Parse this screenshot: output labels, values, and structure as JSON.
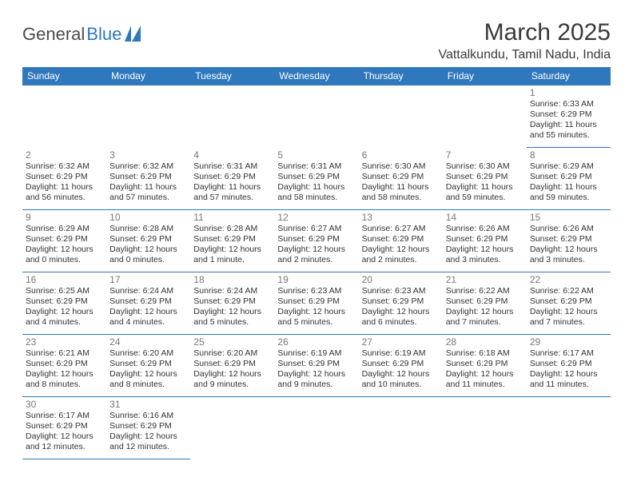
{
  "brand": {
    "part1": "General",
    "part2": "Blue"
  },
  "title": "March 2025",
  "location": "Vattalkundu, Tamil Nadu, India",
  "colors": {
    "header_bg": "#2f78bd",
    "header_fg": "#ffffff",
    "rule": "#2f78bd",
    "daynum": "#777777",
    "body_text": "#333333",
    "logo_dark": "#4a4a4a",
    "logo_blue": "#2f78bd"
  },
  "weekdays": [
    "Sunday",
    "Monday",
    "Tuesday",
    "Wednesday",
    "Thursday",
    "Friday",
    "Saturday"
  ],
  "first_weekday_index": 6,
  "days": [
    {
      "n": 1,
      "sunrise": "6:33 AM",
      "sunset": "6:29 PM",
      "daylight": "11 hours and 55 minutes."
    },
    {
      "n": 2,
      "sunrise": "6:32 AM",
      "sunset": "6:29 PM",
      "daylight": "11 hours and 56 minutes."
    },
    {
      "n": 3,
      "sunrise": "6:32 AM",
      "sunset": "6:29 PM",
      "daylight": "11 hours and 57 minutes."
    },
    {
      "n": 4,
      "sunrise": "6:31 AM",
      "sunset": "6:29 PM",
      "daylight": "11 hours and 57 minutes."
    },
    {
      "n": 5,
      "sunrise": "6:31 AM",
      "sunset": "6:29 PM",
      "daylight": "11 hours and 58 minutes."
    },
    {
      "n": 6,
      "sunrise": "6:30 AM",
      "sunset": "6:29 PM",
      "daylight": "11 hours and 58 minutes."
    },
    {
      "n": 7,
      "sunrise": "6:30 AM",
      "sunset": "6:29 PM",
      "daylight": "11 hours and 59 minutes."
    },
    {
      "n": 8,
      "sunrise": "6:29 AM",
      "sunset": "6:29 PM",
      "daylight": "11 hours and 59 minutes."
    },
    {
      "n": 9,
      "sunrise": "6:29 AM",
      "sunset": "6:29 PM",
      "daylight": "12 hours and 0 minutes."
    },
    {
      "n": 10,
      "sunrise": "6:28 AM",
      "sunset": "6:29 PM",
      "daylight": "12 hours and 0 minutes."
    },
    {
      "n": 11,
      "sunrise": "6:28 AM",
      "sunset": "6:29 PM",
      "daylight": "12 hours and 1 minute."
    },
    {
      "n": 12,
      "sunrise": "6:27 AM",
      "sunset": "6:29 PM",
      "daylight": "12 hours and 2 minutes."
    },
    {
      "n": 13,
      "sunrise": "6:27 AM",
      "sunset": "6:29 PM",
      "daylight": "12 hours and 2 minutes."
    },
    {
      "n": 14,
      "sunrise": "6:26 AM",
      "sunset": "6:29 PM",
      "daylight": "12 hours and 3 minutes."
    },
    {
      "n": 15,
      "sunrise": "6:26 AM",
      "sunset": "6:29 PM",
      "daylight": "12 hours and 3 minutes."
    },
    {
      "n": 16,
      "sunrise": "6:25 AM",
      "sunset": "6:29 PM",
      "daylight": "12 hours and 4 minutes."
    },
    {
      "n": 17,
      "sunrise": "6:24 AM",
      "sunset": "6:29 PM",
      "daylight": "12 hours and 4 minutes."
    },
    {
      "n": 18,
      "sunrise": "6:24 AM",
      "sunset": "6:29 PM",
      "daylight": "12 hours and 5 minutes."
    },
    {
      "n": 19,
      "sunrise": "6:23 AM",
      "sunset": "6:29 PM",
      "daylight": "12 hours and 5 minutes."
    },
    {
      "n": 20,
      "sunrise": "6:23 AM",
      "sunset": "6:29 PM",
      "daylight": "12 hours and 6 minutes."
    },
    {
      "n": 21,
      "sunrise": "6:22 AM",
      "sunset": "6:29 PM",
      "daylight": "12 hours and 7 minutes."
    },
    {
      "n": 22,
      "sunrise": "6:22 AM",
      "sunset": "6:29 PM",
      "daylight": "12 hours and 7 minutes."
    },
    {
      "n": 23,
      "sunrise": "6:21 AM",
      "sunset": "6:29 PM",
      "daylight": "12 hours and 8 minutes."
    },
    {
      "n": 24,
      "sunrise": "6:20 AM",
      "sunset": "6:29 PM",
      "daylight": "12 hours and 8 minutes."
    },
    {
      "n": 25,
      "sunrise": "6:20 AM",
      "sunset": "6:29 PM",
      "daylight": "12 hours and 9 minutes."
    },
    {
      "n": 26,
      "sunrise": "6:19 AM",
      "sunset": "6:29 PM",
      "daylight": "12 hours and 9 minutes."
    },
    {
      "n": 27,
      "sunrise": "6:19 AM",
      "sunset": "6:29 PM",
      "daylight": "12 hours and 10 minutes."
    },
    {
      "n": 28,
      "sunrise": "6:18 AM",
      "sunset": "6:29 PM",
      "daylight": "12 hours and 11 minutes."
    },
    {
      "n": 29,
      "sunrise": "6:17 AM",
      "sunset": "6:29 PM",
      "daylight": "12 hours and 11 minutes."
    },
    {
      "n": 30,
      "sunrise": "6:17 AM",
      "sunset": "6:29 PM",
      "daylight": "12 hours and 12 minutes."
    },
    {
      "n": 31,
      "sunrise": "6:16 AM",
      "sunset": "6:29 PM",
      "daylight": "12 hours and 12 minutes."
    }
  ],
  "labels": {
    "sunrise": "Sunrise:",
    "sunset": "Sunset:",
    "daylight": "Daylight:"
  }
}
